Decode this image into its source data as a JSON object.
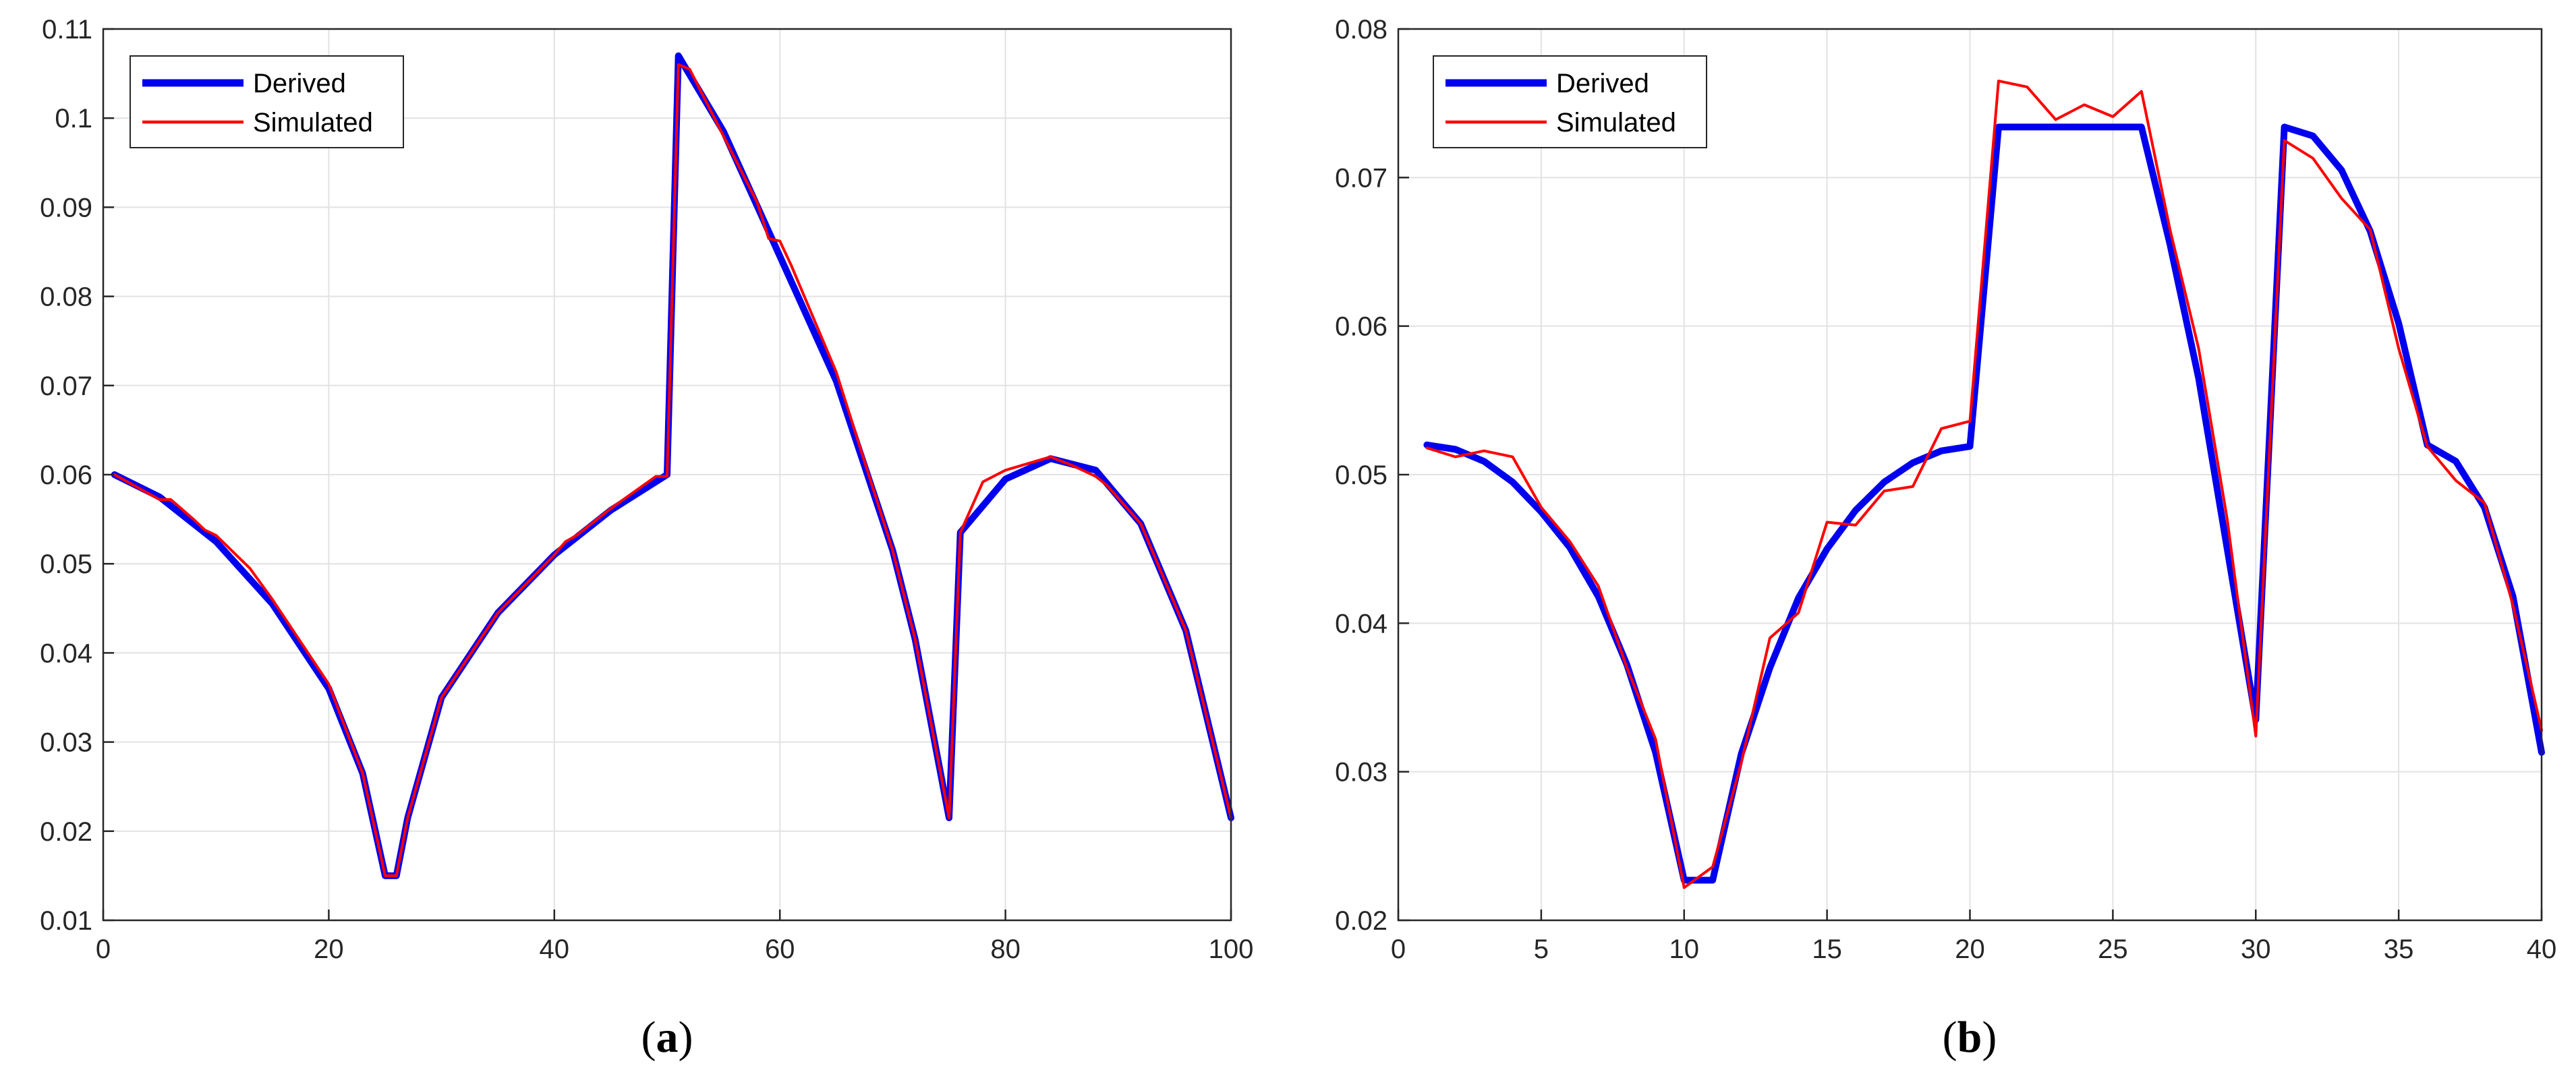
{
  "figure": {
    "colors": {
      "derived": "#0000ee",
      "simulated": "#ff0000",
      "grid": "#e2e2e2",
      "axis": "#262626"
    }
  },
  "chart_data": [
    {
      "type": "line",
      "panel_label": "a",
      "legend": [
        "Derived",
        "Simulated"
      ],
      "legend_position": "top-left",
      "grid": true,
      "xlim": [
        0,
        100
      ],
      "ylim": [
        0.01,
        0.11
      ],
      "xticks": [
        0,
        20,
        40,
        60,
        80,
        100
      ],
      "xtick_labels": [
        "0",
        "20",
        "40",
        "60",
        "80",
        "100"
      ],
      "yticks": [
        0.01,
        0.02,
        0.03,
        0.04,
        0.05,
        0.06,
        0.07,
        0.08,
        0.09,
        0.1,
        0.11
      ],
      "ytick_labels": [
        "0.01",
        "0.02",
        "0.03",
        "0.04",
        "0.05",
        "0.06",
        "0.07",
        "0.08",
        "0.09",
        "0.1",
        "0.11"
      ],
      "series": [
        {
          "name": "Derived",
          "x": [
            1,
            5,
            10,
            15,
            20,
            23,
            25,
            26,
            27,
            30,
            35,
            40,
            45,
            50,
            51,
            55,
            60,
            65,
            70,
            72,
            75,
            76,
            80,
            84,
            88,
            92,
            96,
            100
          ],
          "y": [
            0.06,
            0.0575,
            0.0525,
            0.0455,
            0.036,
            0.0265,
            0.015,
            0.015,
            0.0215,
            0.035,
            0.0445,
            0.051,
            0.056,
            0.06,
            0.107,
            0.0985,
            0.0845,
            0.0705,
            0.0515,
            0.0415,
            0.0215,
            0.0535,
            0.0595,
            0.0618,
            0.0605,
            0.0545,
            0.0425,
            0.0215
          ]
        },
        {
          "name": "Simulated",
          "x": [
            1,
            5,
            6,
            8,
            9,
            10,
            13,
            15,
            20,
            23,
            25,
            26,
            27,
            30,
            35,
            40,
            41,
            42,
            45,
            49,
            50,
            51,
            52,
            56,
            58,
            59,
            60,
            61,
            65,
            70,
            72,
            75,
            76,
            78,
            80,
            84,
            86,
            88,
            89,
            92,
            96,
            100
          ],
          "y": [
            0.06,
            0.0572,
            0.0572,
            0.055,
            0.0538,
            0.0532,
            0.0495,
            0.046,
            0.0365,
            0.0265,
            0.015,
            0.015,
            0.0215,
            0.035,
            0.0445,
            0.051,
            0.0525,
            0.0532,
            0.0562,
            0.0598,
            0.0598,
            0.106,
            0.1055,
            0.0955,
            0.0905,
            0.0865,
            0.0862,
            0.0835,
            0.0715,
            0.0515,
            0.0415,
            0.0215,
            0.0535,
            0.0592,
            0.0605,
            0.062,
            0.061,
            0.0598,
            0.0588,
            0.0545,
            0.0425,
            0.0215
          ]
        }
      ]
    },
    {
      "type": "line",
      "panel_label": "b",
      "legend": [
        "Derived",
        "Simulated"
      ],
      "legend_position": "top-left",
      "grid": true,
      "xlim": [
        0,
        40
      ],
      "ylim": [
        0.02,
        0.08
      ],
      "xticks": [
        0,
        5,
        10,
        15,
        20,
        25,
        30,
        35,
        40
      ],
      "xtick_labels": [
        "0",
        "5",
        "10",
        "15",
        "20",
        "25",
        "30",
        "35",
        "40"
      ],
      "yticks": [
        0.02,
        0.03,
        0.04,
        0.05,
        0.06,
        0.07,
        0.08
      ],
      "ytick_labels": [
        "0.02",
        "0.03",
        "0.04",
        "0.05",
        "0.06",
        "0.07",
        "0.08"
      ],
      "series": [
        {
          "name": "Derived",
          "x": [
            1,
            2,
            3,
            4,
            5,
            6,
            7,
            8,
            9,
            10,
            11,
            12,
            13,
            14,
            15,
            16,
            17,
            18,
            19,
            20,
            21,
            22,
            23,
            24,
            25,
            26,
            27,
            28,
            29,
            30,
            31,
            32,
            33,
            34,
            35,
            36,
            37,
            38,
            39,
            40
          ],
          "y": [
            0.052,
            0.0517,
            0.0509,
            0.0495,
            0.0475,
            0.0451,
            0.0418,
            0.0372,
            0.0313,
            0.0227,
            0.0227,
            0.0312,
            0.037,
            0.0417,
            0.045,
            0.0476,
            0.0495,
            0.0508,
            0.0516,
            0.0519,
            0.0734,
            0.0734,
            0.0734,
            0.0734,
            0.0734,
            0.0734,
            0.0655,
            0.0565,
            0.045,
            0.0335,
            0.0734,
            0.0728,
            0.0705,
            0.0664,
            0.0602,
            0.052,
            0.0509,
            0.0478,
            0.0418,
            0.0313
          ]
        },
        {
          "name": "Simulated",
          "x": [
            1,
            2,
            3,
            4,
            5,
            6,
            7,
            8,
            9,
            10,
            11,
            12,
            13,
            14,
            15,
            16,
            17,
            18,
            19,
            20,
            21,
            22,
            23,
            24,
            25,
            26,
            27,
            28,
            29,
            30,
            31,
            32,
            33,
            34,
            35,
            36,
            37,
            38,
            39,
            40
          ],
          "y": [
            0.0518,
            0.0512,
            0.0516,
            0.0512,
            0.0478,
            0.0455,
            0.0425,
            0.037,
            0.0322,
            0.0222,
            0.0236,
            0.0306,
            0.039,
            0.0407,
            0.0468,
            0.0466,
            0.0489,
            0.0492,
            0.0531,
            0.0536,
            0.0765,
            0.0761,
            0.0739,
            0.0749,
            0.0741,
            0.0758,
            0.0665,
            0.0585,
            0.047,
            0.0324,
            0.0725,
            0.0713,
            0.0686,
            0.0665,
            0.0585,
            0.0519,
            0.0496,
            0.0481,
            0.0412,
            0.0328
          ]
        }
      ]
    }
  ]
}
